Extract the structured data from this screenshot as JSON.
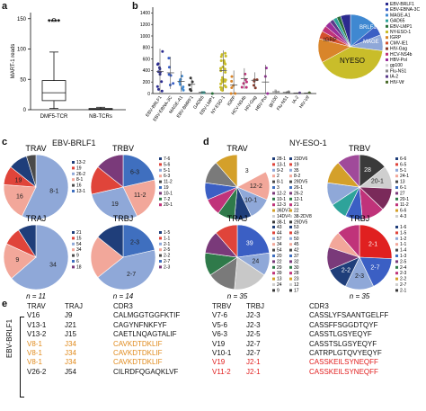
{
  "panels": {
    "a": "a",
    "b": "b",
    "c": "c",
    "d": "d",
    "e": "e"
  },
  "a": {
    "ylabel": "MART-1 reads",
    "yticks": [
      "0",
      "50",
      "100",
      "150"
    ],
    "categories": [
      "DMF5-TCR",
      "NB-TCRs"
    ],
    "significance": "****"
  },
  "b": {
    "yticks": [
      "0",
      "200",
      "400",
      "600",
      "800",
      "1000",
      "1200",
      "1400"
    ],
    "categories": [
      "EBV-BRLF1",
      "EBV-EBNA-3C",
      "MAGE-A1",
      "EBV-BMRF1",
      "GAD65",
      "EBV-LMP1",
      "NY-ESO-1",
      "IGRP",
      "HCV-NS4b",
      "HIV-Gag",
      "HBV-Pol",
      "gp100",
      "Flu-NS1",
      "IA-2",
      "HIV-Vif"
    ],
    "legend": [
      {
        "label": "EBV-BRLF1",
        "color": "#2b2b8f"
      },
      {
        "label": "EBV-EBNA-3C",
        "color": "#3b5fc4"
      },
      {
        "label": "MAGE-A1",
        "color": "#3f88d1"
      },
      {
        "label": "GAD65",
        "color": "#2ea39a"
      },
      {
        "label": "EBV-LMP1",
        "color": "#2a6f3a"
      },
      {
        "label": "NY-ESO-1",
        "color": "#c9bd2a"
      },
      {
        "label": "IGRP",
        "color": "#d9852a"
      },
      {
        "label": "CMV-IE1",
        "color": "#d4502e"
      },
      {
        "label": "HIV-Gag",
        "color": "#8b3a2a"
      },
      {
        "label": "HCV-NS4b",
        "color": "#c0337a"
      },
      {
        "label": "HBV-Pol",
        "color": "#9a2f9a"
      },
      {
        "label": "gp100",
        "color": "#cfcfcf"
      },
      {
        "label": "Flu-NS1",
        "color": "#8a8a8a"
      },
      {
        "label": "IA-2",
        "color": "#5a3a8a"
      },
      {
        "label": "HIV-Vif",
        "color": "#4a6b2a"
      }
    ],
    "pie_labels": {
      "brlf1": "BRLF1",
      "mage": "MAGE",
      "igrp": "IGRP",
      "nyeso": "NYESO"
    }
  },
  "c": {
    "title": "EBV-BRLF1",
    "pies": {
      "trav": {
        "title": "TRAV",
        "slices": [
          {
            "label": "8-1",
            "value": 12,
            "color": "#8fa8d8"
          },
          {
            "label": "16",
            "value": 4,
            "color": "#f2a79a"
          },
          {
            "label": "19",
            "value": 2,
            "color": "#e0443a"
          },
          {
            "label": "",
            "value": 2,
            "color": "#1f3e7a"
          },
          {
            "label": "",
            "value": 1,
            "color": "#4a4a4a"
          }
        ],
        "legend": [
          "13-2",
          "19",
          "26-2",
          "8-1",
          "16",
          "13-1"
        ]
      },
      "trbv": {
        "title": "TRBV",
        "slices": [
          {
            "label": "6-3",
            "value": 3,
            "color": "#3f6fbf"
          },
          {
            "label": "11-2",
            "value": 3,
            "color": "#f2a79a"
          },
          {
            "label": "19",
            "value": 4,
            "color": "#8fa8d8"
          },
          {
            "label": "",
            "value": 2,
            "color": "#e0443a"
          },
          {
            "label": "",
            "value": 2,
            "color": "#7a3a7a"
          }
        ],
        "legend": [
          "7-6",
          "5-6",
          "5-1",
          "6-3",
          "11-2",
          "19",
          "10-1",
          "7-2",
          "20-1"
        ]
      },
      "traj": {
        "title": "TRAJ",
        "slices": [
          {
            "label": "34",
            "value": 7,
            "color": "#8fa8d8"
          },
          {
            "label": "9",
            "value": 2,
            "color": "#f2a79a"
          },
          {
            "label": "",
            "value": 1,
            "color": "#e0443a"
          },
          {
            "label": "",
            "value": 1,
            "color": "#1f3e7a"
          }
        ],
        "legend": [
          "21",
          "15",
          "54",
          "34",
          "9",
          "6",
          "18"
        ],
        "n": "n = 11"
      },
      "trbj": {
        "title": "TRBJ",
        "slices": [
          {
            "label": "2-3",
            "value": 3,
            "color": "#3f6fbf"
          },
          {
            "label": "2-7",
            "value": 6,
            "color": "#8fa8d8"
          },
          {
            "label": "",
            "value": 3,
            "color": "#f2a79a"
          },
          {
            "label": "",
            "value": 2,
            "color": "#1f3e7a"
          }
        ],
        "legend": [
          "1-5",
          "1-1",
          "2-1",
          "2-5",
          "2-2",
          "2-7",
          "2-3"
        ],
        "n": "n = 14"
      }
    }
  },
  "d": {
    "title": "NY-ESO-1",
    "pies": {
      "trav": {
        "title": "TRAV",
        "slices": [
          {
            "label": "3",
            "value": 6,
            "color": "#ffffff"
          },
          {
            "label": "12-2",
            "value": 5,
            "color": "#f2a79a"
          },
          {
            "label": "10-1",
            "value": 4,
            "color": "#8fa8d8"
          },
          {
            "label": "",
            "value": 3,
            "color": "#1f3e7a"
          },
          {
            "label": "",
            "value": 3,
            "color": "#2f7a4a"
          },
          {
            "label": "",
            "value": 3,
            "color": "#c0337a"
          },
          {
            "label": "",
            "value": 3,
            "color": "#3b5fc4"
          },
          {
            "label": "",
            "value": 4,
            "color": "#7a7a7a"
          },
          {
            "label": "",
            "value": 4,
            "color": "#d4a02a"
          }
        ],
        "legend": [
          "28-1",
          "13-1",
          "9-2",
          "2",
          "8-1",
          "3",
          "12-2",
          "10-1",
          "12-3",
          "36DV7",
          "14DV4",
          "38-1"
        ],
        "legend2": [
          "23DV6",
          "19",
          "35",
          "8-2",
          "29DV5",
          "26-1",
          "26-2",
          "12-1",
          "21",
          "22",
          "38-2DV8",
          "29DV5"
        ]
      },
      "trbv": {
        "title": "TRBV",
        "slices": [
          {
            "label": "28",
            "value": 5,
            "color": "#3a3a3a"
          },
          {
            "label": "20-1",
            "value": 4,
            "color": "#cfcfcf"
          },
          {
            "label": "",
            "value": 4,
            "color": "#7a2a5a"
          },
          {
            "label": "",
            "value": 4,
            "color": "#c0337a"
          },
          {
            "label": "",
            "value": 3,
            "color": "#3b5fc4"
          },
          {
            "label": "",
            "value": 3,
            "color": "#2ea39a"
          },
          {
            "label": "",
            "value": 4,
            "color": "#8fa8d8"
          },
          {
            "label": "",
            "value": 4,
            "color": "#d4a02a"
          },
          {
            "label": "",
            "value": 4,
            "color": "#a04a9a"
          }
        ],
        "legend": [
          "6-6",
          "6-5",
          "5-1",
          "24-1",
          "13",
          "6-1",
          "27",
          "20-1",
          "11-2",
          "6-6",
          "4-3"
        ]
      },
      "traj": {
        "title": "TRAJ",
        "slices": [
          {
            "label": "39",
            "value": 8,
            "color": "#3b5fc4"
          },
          {
            "label": "24",
            "value": 4,
            "color": "#8fa8d8"
          },
          {
            "label": "",
            "value": 6,
            "color": "#c8c8c8"
          },
          {
            "label": "",
            "value": 5,
            "color": "#7a7a7a"
          },
          {
            "label": "",
            "value": 4,
            "color": "#2f7a4a"
          },
          {
            "label": "",
            "value": 4,
            "color": "#7a3a7a"
          },
          {
            "label": "",
            "value": 4,
            "color": "#e0443a"
          }
        ],
        "legend": [
          "43",
          "44",
          "57",
          "34",
          "54",
          "20",
          "22",
          "29",
          "39",
          "13",
          "24",
          "9"
        ],
        "legend2": [
          "53",
          "49",
          "50",
          "45",
          "42",
          "37",
          "32",
          "30",
          "28",
          "23",
          "12",
          "17"
        ],
        "n": "n = 35"
      },
      "trbj": {
        "title": "TRBJ",
        "slices": [
          {
            "label": "2-1",
            "value": 9,
            "color": "#e02020"
          },
          {
            "label": "2-7",
            "value": 6,
            "color": "#3b5fc4"
          },
          {
            "label": "2-3",
            "value": 5,
            "color": "#8fa8d8"
          },
          {
            "label": "2-2",
            "value": 4,
            "color": "#1f3e7a"
          },
          {
            "label": "",
            "value": 4,
            "color": "#7a3a7a"
          },
          {
            "label": "",
            "value": 3,
            "color": "#f2a79a"
          },
          {
            "label": "",
            "value": 4,
            "color": "#c0337a"
          }
        ],
        "legend": [
          "1-6",
          "1-5",
          "1-2",
          "1-1",
          "1-4",
          "1-3",
          "2-5",
          "2-4",
          "2-3",
          "2-2",
          "2-7",
          "2-1"
        ],
        "n": "n = 35"
      }
    }
  },
  "e": {
    "side_label": "EBV-BRLF1",
    "headers": [
      "TRAV",
      "TRAJ",
      "CDR3",
      "TRBV",
      "TRBJ",
      "CDR3"
    ],
    "rows": [
      {
        "trav": "V16",
        "traj": "J9",
        "cdr3a": "CALMGGTGGFKTIF",
        "trbv": "V7-6",
        "trbj": "J2-3",
        "cdr3b": "CASSLYFSAANTGELFF",
        "a_color": "normal",
        "b_color": "normal"
      },
      {
        "trav": "V13-1",
        "traj": "J21",
        "cdr3a": "CAGYNFNKFYF",
        "trbv": "V5-6",
        "trbj": "J2-3",
        "cdr3b": "CASSFFSGGDTQYF",
        "a_color": "normal",
        "b_color": "normal"
      },
      {
        "trav": "V13-2",
        "traj": "J15",
        "cdr3a": "CAETLNQAGTALIF",
        "trbv": "V6-3",
        "trbj": "J2-5",
        "cdr3b": "CASSTLGSYEQYF",
        "a_color": "normal",
        "b_color": "normal"
      },
      {
        "trav": "V8-1",
        "traj": "J34",
        "cdr3a": "CAVKDTDKLIF",
        "trbv": "V19",
        "trbj": "J2-7",
        "cdr3b": "CASSTSLGSYEQYF",
        "a_color": "orange",
        "b_color": "normal"
      },
      {
        "trav": "V8-1",
        "traj": "J34",
        "cdr3a": "CAVKDTDKLIF",
        "trbv": "V10-1",
        "trbj": "J2-7",
        "cdr3b": "CATRPLGTQVYEQYF",
        "a_color": "orange",
        "b_color": "normal"
      },
      {
        "trav": "V8-1",
        "traj": "J34",
        "cdr3a": "CAVKDTDKLIF",
        "trbv": "V19",
        "trbj": "J2-1",
        "cdr3b": "CASSKEILSYNEQFF",
        "a_color": "orange",
        "b_color": "red"
      },
      {
        "trav": "V26-2",
        "traj": "J54",
        "cdr3a": "CILRDFQGAQKLVF",
        "trbv": "V11-2",
        "trbj": "J2-1",
        "cdr3b": "CASSKEILSYNEQFF",
        "a_color": "normal",
        "b_color": "red"
      }
    ]
  },
  "chart_data": [
    {
      "type": "box",
      "ylabel": "MART-1 reads",
      "categories": [
        "DMF5-TCR",
        "NB-TCRs"
      ],
      "ylim": [
        0,
        160
      ],
      "boxes": [
        {
          "name": "DMF5-TCR",
          "min": 2,
          "q1": 15,
          "median": 28,
          "q3": 48,
          "max": 95,
          "outliers": [
            148
          ]
        },
        {
          "name": "NB-TCRs",
          "min": 0,
          "q1": 0,
          "median": 1,
          "q3": 2,
          "max": 4,
          "outliers": []
        }
      ],
      "annotation": "****"
    },
    {
      "type": "scatter",
      "categories": [
        "EBV-BRLF1",
        "EBV-EBNA-3C",
        "MAGE-A1",
        "EBV-BMRF1",
        "GAD65",
        "EBV-LMP1",
        "NY-ESO-1",
        "IGRP",
        "HCV-NS4b",
        "HIV-Gag",
        "HBV-Pol",
        "gp100",
        "Flu-NS1",
        "IA-2",
        "HIV-Vif"
      ],
      "ylim": [
        0,
        1500
      ],
      "means": [
        380,
        360,
        210,
        160,
        20,
        0,
        400,
        150,
        260,
        230,
        200,
        30,
        20,
        10,
        10
      ],
      "sd": [
        400,
        280,
        180,
        120,
        20,
        0,
        350,
        250,
        180,
        140,
        300,
        30,
        20,
        10,
        10
      ]
    }
  ]
}
